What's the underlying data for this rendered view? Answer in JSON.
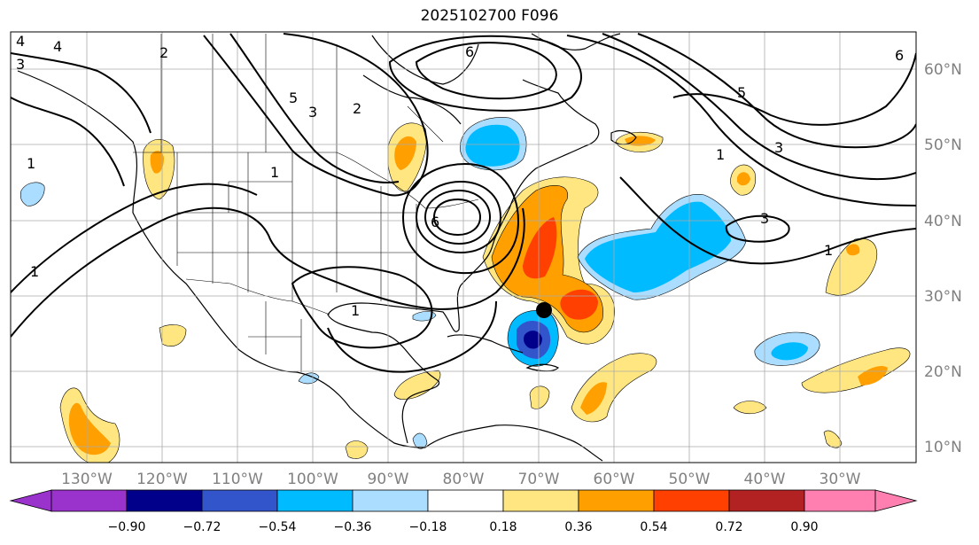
{
  "title": "2025102700 F096",
  "longitude_labels": [
    "130°W",
    "120°W",
    "110°W",
    "100°W",
    "90°W",
    "80°W",
    "70°W",
    "60°W",
    "50°W",
    "40°W",
    "30°W"
  ],
  "latitude_labels": [
    "60°N",
    "50°N",
    "40°N",
    "30°N",
    "20°N",
    "10°N"
  ],
  "colorbar": {
    "ticks": [
      "−0.90",
      "−0.72",
      "−0.54",
      "−0.36",
      "−0.18",
      "0.18",
      "0.36",
      "0.54",
      "0.72",
      "0.90"
    ],
    "colors": [
      "#9933cc",
      "#00008b",
      "#3355cc",
      "#00bbff",
      "#aaddff",
      "#ffffff",
      "#ffe680",
      "#ffa000",
      "#ff4000",
      "#b22222",
      "#ff80b0"
    ]
  },
  "contour_labels": [
    "1",
    "1",
    "1",
    "2",
    "3",
    "4",
    "5",
    "6",
    "6",
    "3",
    "2",
    "1",
    "5",
    "4",
    "6",
    "3",
    "1",
    "3",
    "1"
  ],
  "storm_marker": "black-dot",
  "colors": {
    "grid": "#aaaaaa",
    "text": "#000000",
    "axis_labels": "#808080"
  }
}
